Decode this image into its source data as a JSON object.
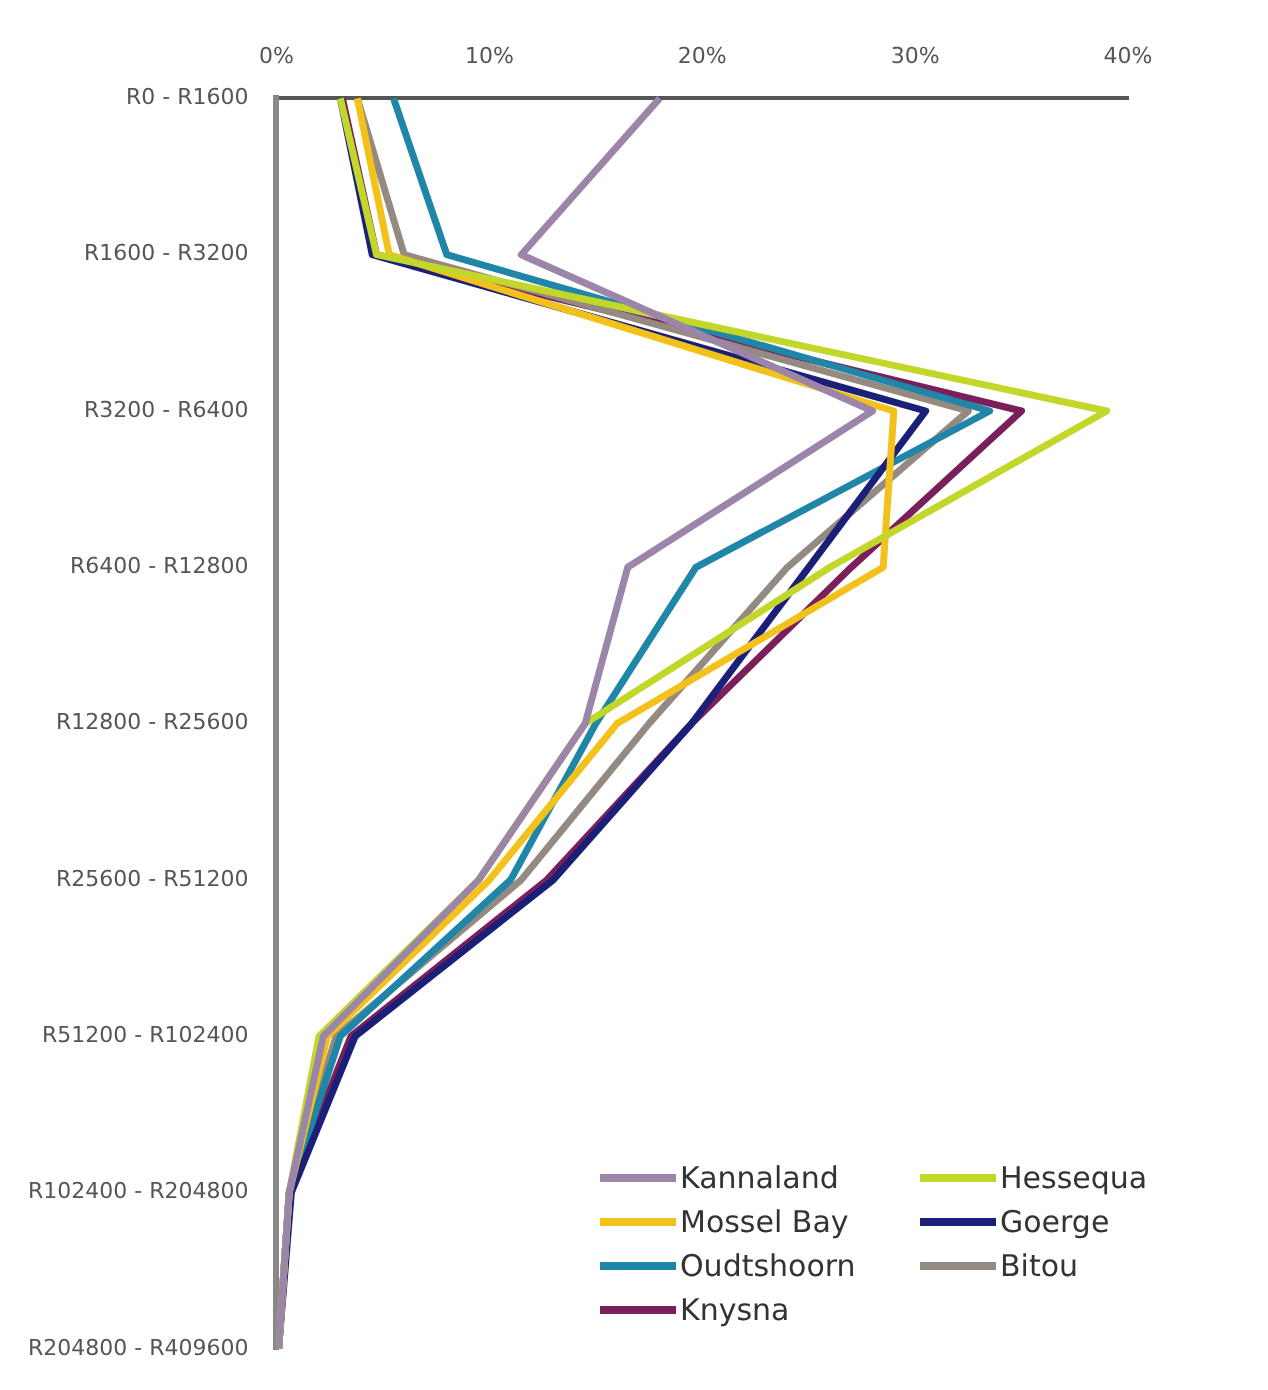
{
  "chart_data": {
    "type": "line",
    "orientation": "horizontal",
    "categories": [
      "R0 - R1600",
      "R1600 - R3200",
      "R3200 - R6400",
      "R6400 - R12800",
      "R12800 - R25600",
      "R25600 - R51200",
      "R51200 - R102400",
      "R102400 - R204800",
      "R204800 - R409600"
    ],
    "xlim": [
      0,
      40
    ],
    "xticks": [
      {
        "value": 0,
        "label": "0%"
      },
      {
        "value": 10,
        "label": "10%"
      },
      {
        "value": 20,
        "label": "20%"
      },
      {
        "value": 30,
        "label": "30%"
      },
      {
        "value": 40,
        "label": "40%"
      }
    ],
    "grid": false,
    "legend": "bottom right",
    "marker": "none",
    "line_style": "solid",
    "series": [
      {
        "name": "Kannaland",
        "color": "#9b85a8",
        "values": [
          18,
          11.5,
          28,
          16.5,
          14.5,
          9.5,
          2.2,
          0.6,
          0.1
        ]
      },
      {
        "name": "Hessequa",
        "color": "#c3d62a",
        "values": [
          3,
          4.7,
          39,
          26,
          14.5,
          9.5,
          2,
          0.6,
          0.1
        ]
      },
      {
        "name": "Mossel Bay",
        "color": "#f2c21b",
        "values": [
          3.8,
          5.3,
          29,
          28.5,
          16,
          10,
          2.4,
          0.6,
          0.1
        ]
      },
      {
        "name": "Goerge",
        "color": "#1a1f78",
        "values": [
          3,
          4.5,
          30.5,
          25,
          19.5,
          13,
          3.7,
          0.7,
          0.1
        ]
      },
      {
        "name": "Oudtshoorn",
        "color": "#1f86a8",
        "values": [
          5.5,
          8,
          33.5,
          19.7,
          15,
          11,
          3,
          0.6,
          0.1
        ]
      },
      {
        "name": "Bitou",
        "color": "#958a82",
        "values": [
          3.8,
          6,
          32.5,
          24,
          17.5,
          11.5,
          2.8,
          0.6,
          0.1
        ]
      },
      {
        "name": "Knysna",
        "color": "#7a1f5c",
        "values": [
          3.1,
          4.7,
          35,
          27,
          19.5,
          12.7,
          3.5,
          0.6,
          0.1
        ]
      }
    ]
  }
}
